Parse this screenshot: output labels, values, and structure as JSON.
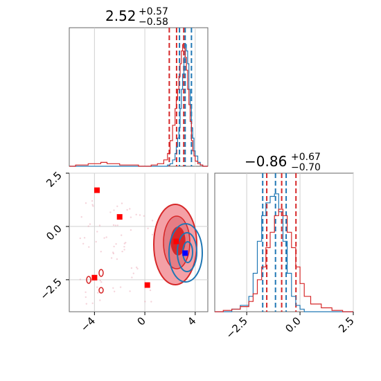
{
  "chart_data": [
    {
      "type": "histogram",
      "panel": "marginal-x",
      "title": {
        "main": "2.52",
        "sup": "+0.57",
        "sub": "−0.58"
      },
      "xlim": [
        -6,
        5
      ],
      "grid": true,
      "vlines": {
        "red": [
          1.94,
          2.52,
          3.09
        ],
        "blue": [
          2.75,
          3.2,
          3.7
        ]
      },
      "series": [
        {
          "color": "#1f77b4",
          "x": [
            -6,
            -5.5,
            -5,
            -4.5,
            -4,
            -3.5,
            -3,
            -2.5,
            -2,
            -1.5,
            -1,
            -0.5,
            0,
            0.5,
            1,
            1.5,
            1.8,
            2.0,
            2.2,
            2.4,
            2.5,
            2.6,
            2.7,
            2.8,
            2.9,
            3.0,
            3.1,
            3.2,
            3.3,
            3.4,
            3.5,
            3.6,
            3.7,
            3.8,
            3.9,
            4.0,
            4.2,
            4.4,
            4.6,
            5
          ],
          "values": [
            0,
            0,
            0,
            0,
            0,
            0,
            0,
            0,
            0,
            0,
            0,
            0,
            0,
            0,
            0,
            0,
            0.01,
            0.02,
            0.05,
            0.1,
            0.15,
            0.22,
            0.3,
            0.45,
            0.6,
            0.72,
            0.85,
            0.95,
            0.9,
            0.8,
            0.6,
            0.48,
            0.3,
            0.22,
            0.12,
            0.08,
            0.03,
            0.01,
            0,
            0
          ]
        },
        {
          "color": "#d62728",
          "x": [
            -6,
            -5.5,
            -5,
            -4.5,
            -4,
            -3.5,
            -3,
            -2.5,
            -2,
            -1.5,
            -1,
            -0.5,
            0,
            0.5,
            1,
            1.5,
            1.8,
            2.0,
            2.2,
            2.4,
            2.5,
            2.6,
            2.7,
            2.8,
            2.9,
            3.0,
            3.1,
            3.2,
            3.3,
            3.4,
            3.5,
            3.6,
            3.7,
            3.8,
            3.9,
            4.0,
            4.2,
            4.4,
            4.6,
            5
          ],
          "values": [
            0,
            0.01,
            0.01,
            0.02,
            0.02,
            0.03,
            0.02,
            0.02,
            0.01,
            0.01,
            0.01,
            0,
            0,
            0.01,
            0.02,
            0.05,
            0.1,
            0.2,
            0.32,
            0.45,
            0.52,
            0.6,
            0.7,
            0.8,
            0.9,
            0.95,
            0.92,
            0.85,
            0.75,
            0.6,
            0.48,
            0.35,
            0.2,
            0.12,
            0.08,
            0.04,
            0.02,
            0.01,
            0,
            0
          ]
        }
      ]
    },
    {
      "type": "histogram",
      "panel": "marginal-y",
      "title": {
        "main": "−0.86",
        "sup": "+0.67",
        "sub": "−0.70"
      },
      "xlim": [
        -4.0,
        2.5
      ],
      "xticks": [
        "−2.5",
        "0.0",
        "2.5"
      ],
      "grid": true,
      "vlines": {
        "red": [
          -1.56,
          -0.86,
          -0.19
        ],
        "blue": [
          -1.75,
          -1.15,
          -0.65
        ]
      },
      "series": [
        {
          "color": "#1f77b4",
          "x": [
            -4,
            -3.6,
            -3.2,
            -2.8,
            -2.4,
            -2.2,
            -2.0,
            -1.8,
            -1.6,
            -1.4,
            -1.2,
            -1.0,
            -0.8,
            -0.6,
            -0.4,
            -0.2,
            0,
            0.2,
            0.5,
            1,
            1.5,
            2,
            2.5
          ],
          "values": [
            0,
            0,
            0.02,
            0.05,
            0.12,
            0.3,
            0.55,
            0.75,
            0.85,
            0.9,
            0.92,
            0.78,
            0.55,
            0.3,
            0.12,
            0.05,
            0.02,
            0,
            0,
            0,
            0,
            0,
            0
          ]
        },
        {
          "color": "#d62728",
          "x": [
            -4,
            -3.6,
            -3.2,
            -2.8,
            -2.4,
            -2.2,
            -2.0,
            -1.8,
            -1.6,
            -1.4,
            -1.2,
            -1.0,
            -0.8,
            -0.6,
            -0.4,
            -0.2,
            0,
            0.2,
            0.5,
            1,
            1.5,
            2,
            2.5
          ],
          "values": [
            0,
            0.01,
            0.02,
            0.04,
            0.08,
            0.14,
            0.25,
            0.35,
            0.5,
            0.62,
            0.75,
            0.8,
            0.75,
            0.62,
            0.5,
            0.35,
            0.22,
            0.12,
            0.06,
            0.03,
            0.01,
            0,
            0
          ]
        }
      ]
    },
    {
      "type": "scatter",
      "panel": "joint",
      "xlim": [
        -6,
        5
      ],
      "ylim": [
        -4.0,
        2.5
      ],
      "xticks": [
        "−4",
        "0",
        "4"
      ],
      "yticks": [
        "2.5",
        "0.0",
        "−2.5"
      ],
      "grid": true,
      "markers": {
        "red": [
          {
            "x": -3.8,
            "y": 1.7
          },
          {
            "x": -2.0,
            "y": 0.45
          },
          {
            "x": 0.2,
            "y": -2.75
          },
          {
            "x": -4.0,
            "y": -2.4
          },
          {
            "x": 2.5,
            "y": -0.7
          }
        ],
        "blue": [
          {
            "x": 3.2,
            "y": -1.25
          }
        ]
      },
      "contours": {
        "red_center": {
          "x": 2.45,
          "y": -0.85
        },
        "blue_center": {
          "x": 3.1,
          "y": -1.1
        }
      }
    }
  ]
}
